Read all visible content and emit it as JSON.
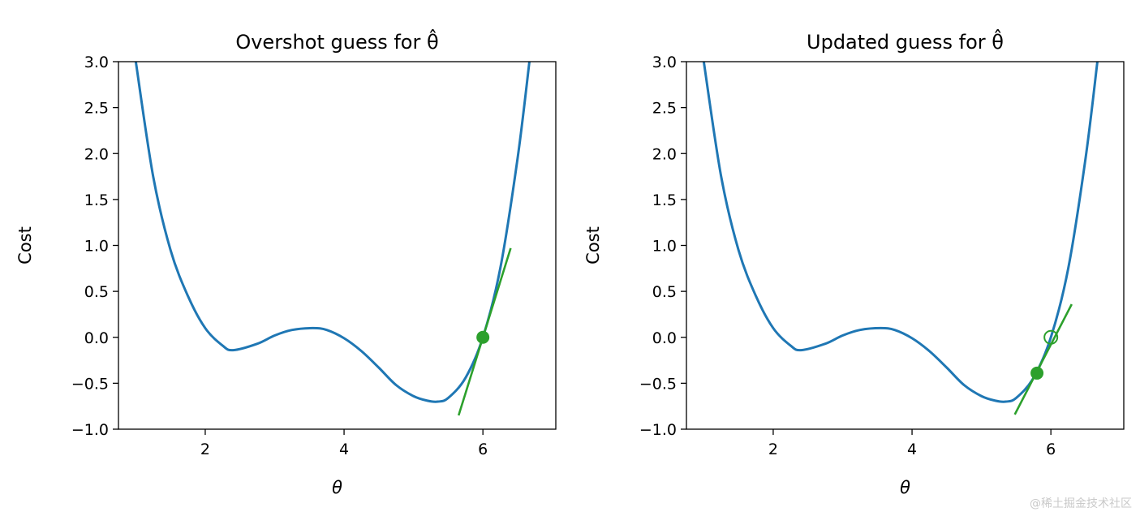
{
  "chart_data": [
    {
      "type": "line",
      "title": "Overshot guess for θ̂",
      "xlabel": "θ",
      "ylabel": "Cost",
      "xlim": [
        0.75,
        7.05
      ],
      "ylim": [
        -1.0,
        3.0
      ],
      "x_ticks": [
        2,
        4,
        6
      ],
      "y_ticks": [
        -1.0,
        -0.5,
        0.0,
        0.5,
        1.0,
        1.5,
        2.0,
        2.5,
        3.0
      ],
      "x_tick_labels": [
        "2",
        "4",
        "6"
      ],
      "y_tick_labels": [
        "−1.0",
        "−0.5",
        "0.0",
        "0.5",
        "1.0",
        "1.5",
        "2.0",
        "2.5",
        "3.0"
      ],
      "grid": false,
      "series": [
        {
          "type": "line",
          "color": "#1f77b4",
          "x": [
            1.0,
            1.25,
            1.5,
            1.75,
            2.0,
            2.25,
            2.4,
            2.75,
            3.0,
            3.25,
            3.55,
            3.75,
            4.0,
            4.25,
            4.5,
            4.75,
            5.0,
            5.2,
            5.35,
            5.5,
            5.75,
            6.0,
            6.25,
            6.5,
            6.67
          ],
          "y": [
            3.0,
            1.75,
            0.95,
            0.45,
            0.1,
            -0.09,
            -0.14,
            -0.07,
            0.02,
            0.08,
            0.1,
            0.08,
            -0.01,
            -0.15,
            -0.33,
            -0.52,
            -0.64,
            -0.69,
            -0.7,
            -0.66,
            -0.44,
            0.0,
            0.75,
            1.95,
            3.0
          ]
        },
        {
          "type": "tangent",
          "color": "#2ca02c",
          "x": [
            5.65,
            6.4
          ],
          "y": [
            -0.85,
            0.97
          ]
        },
        {
          "type": "point",
          "color": "#2ca02c",
          "filled": true,
          "x": [
            6.0
          ],
          "y": [
            0.0
          ]
        }
      ]
    },
    {
      "type": "line",
      "title": "Updated guess for θ̂",
      "xlabel": "θ",
      "ylabel": "Cost",
      "xlim": [
        0.75,
        7.05
      ],
      "ylim": [
        -1.0,
        3.0
      ],
      "x_ticks": [
        2,
        4,
        6
      ],
      "y_ticks": [
        -1.0,
        -0.5,
        0.0,
        0.5,
        1.0,
        1.5,
        2.0,
        2.5,
        3.0
      ],
      "x_tick_labels": [
        "2",
        "4",
        "6"
      ],
      "y_tick_labels": [
        "−1.0",
        "−0.5",
        "0.0",
        "0.5",
        "1.0",
        "1.5",
        "2.0",
        "2.5",
        "3.0"
      ],
      "grid": false,
      "series": [
        {
          "type": "line",
          "color": "#1f77b4",
          "x": [
            1.0,
            1.25,
            1.5,
            1.75,
            2.0,
            2.25,
            2.4,
            2.75,
            3.0,
            3.25,
            3.55,
            3.75,
            4.0,
            4.25,
            4.5,
            4.75,
            5.0,
            5.2,
            5.35,
            5.5,
            5.75,
            6.0,
            6.25,
            6.5,
            6.67
          ],
          "y": [
            3.0,
            1.75,
            0.95,
            0.45,
            0.1,
            -0.09,
            -0.14,
            -0.07,
            0.02,
            0.08,
            0.1,
            0.08,
            -0.01,
            -0.15,
            -0.33,
            -0.52,
            -0.64,
            -0.69,
            -0.7,
            -0.66,
            -0.44,
            0.0,
            0.75,
            1.95,
            3.0
          ]
        },
        {
          "type": "tangent",
          "color": "#2ca02c",
          "x": [
            5.48,
            6.3
          ],
          "y": [
            -0.84,
            0.36
          ]
        },
        {
          "type": "point",
          "color": "#2ca02c",
          "filled": false,
          "x": [
            6.0
          ],
          "y": [
            0.0
          ]
        },
        {
          "type": "point",
          "color": "#2ca02c",
          "filled": true,
          "x": [
            5.8
          ],
          "y": [
            -0.39
          ]
        }
      ]
    }
  ],
  "watermark": "@稀土掘金技术社区"
}
